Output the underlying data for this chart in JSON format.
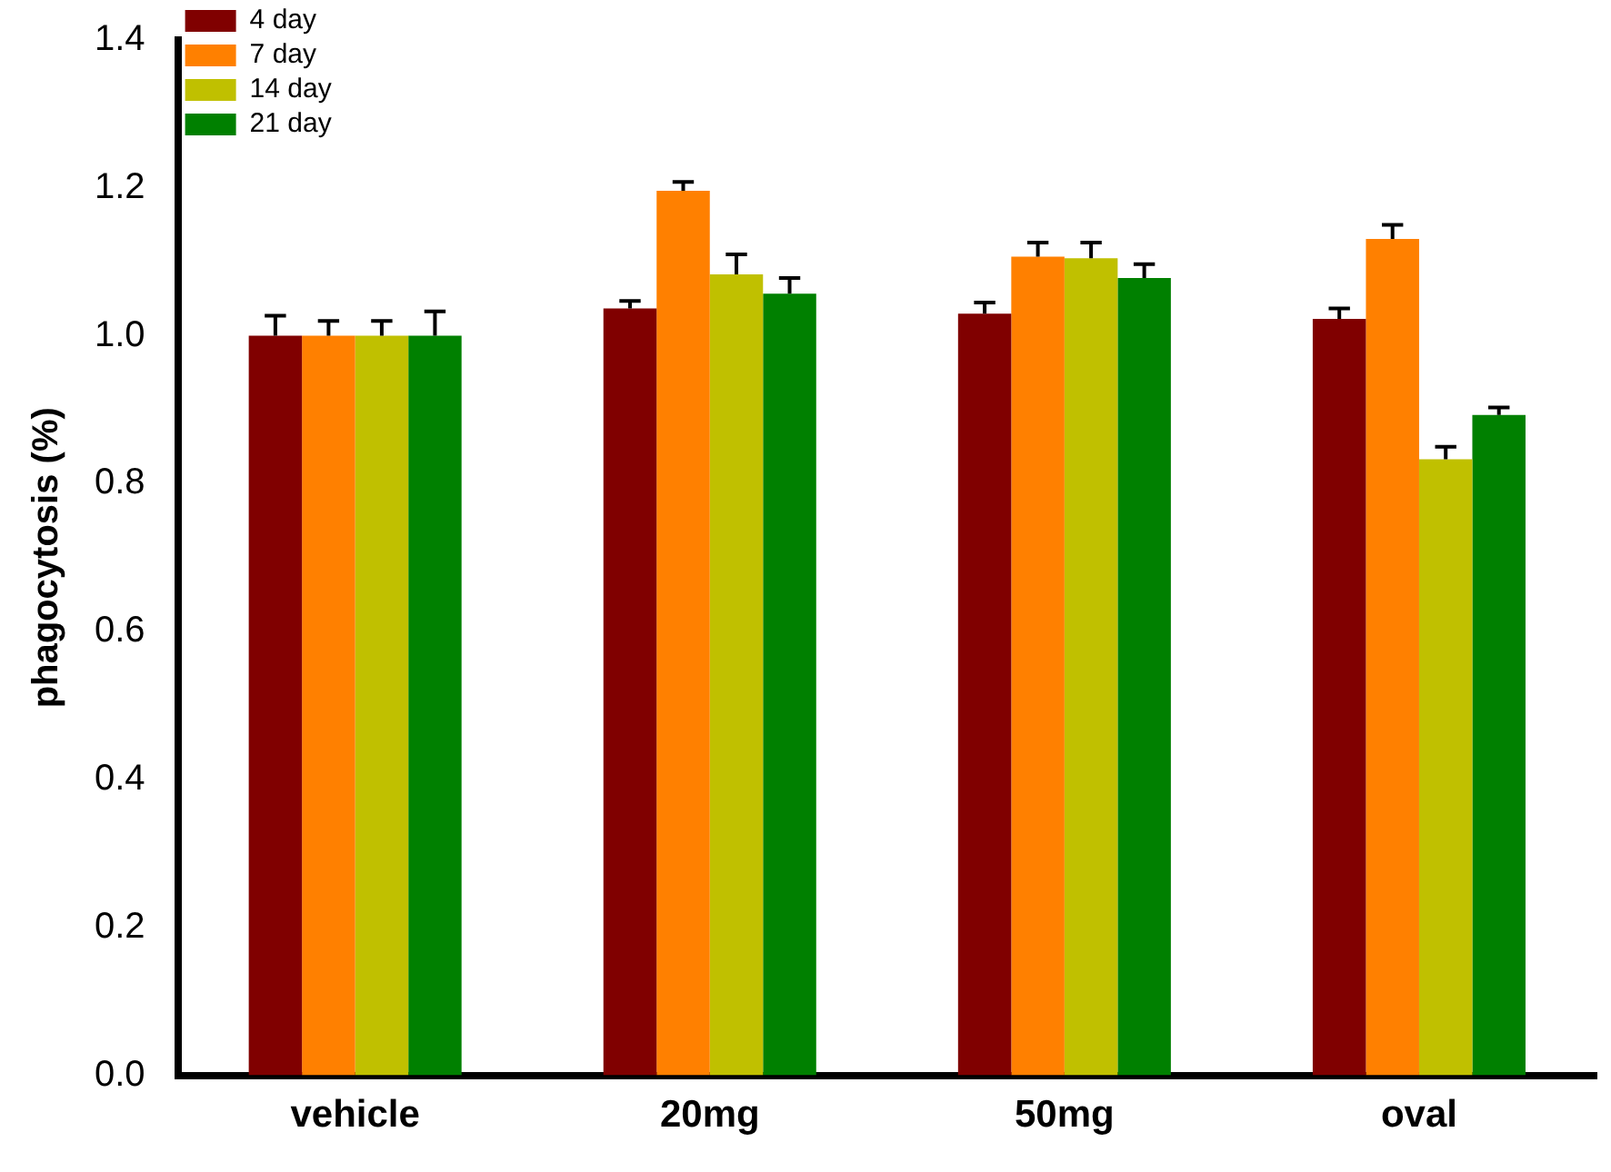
{
  "chart_data": {
    "type": "bar",
    "ylabel": "phagocytosis (%)",
    "categories": [
      "vehicle",
      "20mg",
      "50mg",
      "oval"
    ],
    "series": [
      {
        "name": "4 day",
        "color": "#800000",
        "values": [
          1.0,
          1.037,
          1.03,
          1.023
        ],
        "errors": [
          [
            1.0,
            1.027
          ],
          [
            1.037,
            1.047
          ],
          [
            1.03,
            1.045
          ],
          [
            1.023,
            1.037
          ]
        ]
      },
      {
        "name": "7 day",
        "color": "#ff8000",
        "values": [
          1.0,
          1.196,
          1.107,
          1.131
        ],
        "errors": [
          [
            1.0,
            1.02
          ],
          [
            1.196,
            1.208
          ],
          [
            1.107,
            1.126
          ],
          [
            1.131,
            1.15
          ]
        ]
      },
      {
        "name": "14 day",
        "color": "#c0c000",
        "values": [
          1.0,
          1.083,
          1.105,
          0.833
        ],
        "errors": [
          [
            1.0,
            1.02
          ],
          [
            1.083,
            1.11
          ],
          [
            1.105,
            1.126
          ],
          [
            0.833,
            0.85
          ]
        ]
      },
      {
        "name": "21 day",
        "color": "#008000",
        "values": [
          1.0,
          1.057,
          1.078,
          0.893
        ],
        "errors": [
          [
            1.0,
            1.033
          ],
          [
            1.057,
            1.078
          ],
          [
            1.078,
            1.097
          ],
          [
            0.893,
            0.903
          ]
        ]
      }
    ],
    "ylim": [
      0,
      1.4
    ],
    "yticks": [
      {
        "value": 0,
        "label": "0.0"
      },
      {
        "value": 0.2,
        "label": "0.2"
      },
      {
        "value": 0.4,
        "label": "0.4"
      },
      {
        "value": 0.6,
        "label": "0.6"
      },
      {
        "value": 0.8,
        "label": "0.8"
      },
      {
        "value": 1.0,
        "label": "1.0"
      },
      {
        "value": 1.2,
        "label": "1.2"
      },
      {
        "value": 1.4,
        "label": "1.4"
      }
    ],
    "grid": false,
    "legend": "top left"
  }
}
